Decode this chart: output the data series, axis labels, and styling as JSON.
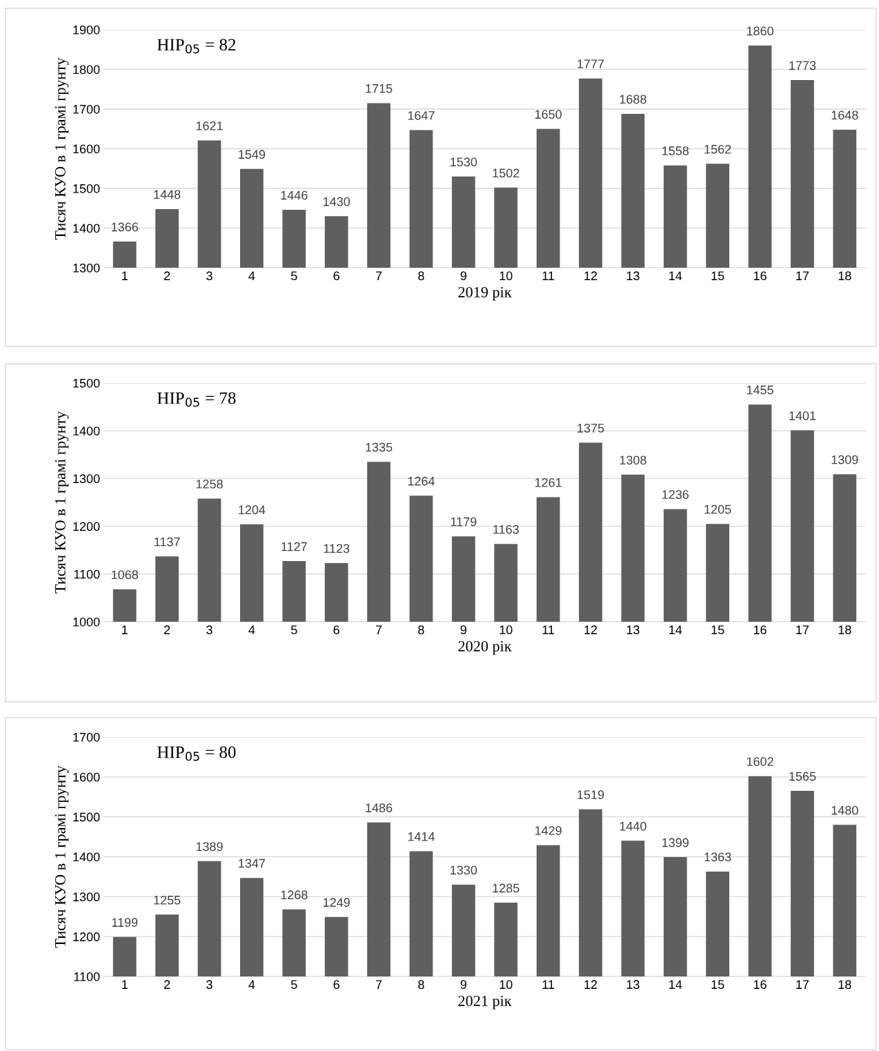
{
  "chart_data": [
    {
      "type": "bar",
      "categories": [
        "1",
        "2",
        "3",
        "4",
        "5",
        "6",
        "7",
        "8",
        "9",
        "10",
        "11",
        "12",
        "13",
        "14",
        "15",
        "16",
        "17",
        "18"
      ],
      "values": [
        1366,
        1448,
        1621,
        1549,
        1446,
        1430,
        1715,
        1647,
        1530,
        1502,
        1650,
        1777,
        1688,
        1558,
        1562,
        1860,
        1773,
        1648
      ],
      "color": "#5f5f5f",
      "ylim": [
        1300,
        1900
      ],
      "yticks": [
        1300,
        1400,
        1500,
        1600,
        1700,
        1800,
        1900
      ],
      "grid": "y",
      "data_labels": true,
      "xlabel": "2019 рік",
      "ylabel": "Тисяч КУО в 1 грамі грунту",
      "annotations": [
        "НІР$_{05}$ = 82"
      ]
    },
    {
      "type": "bar",
      "categories": [
        "1",
        "2",
        "3",
        "4",
        "5",
        "6",
        "7",
        "8",
        "9",
        "10",
        "11",
        "12",
        "13",
        "14",
        "15",
        "16",
        "17",
        "18"
      ],
      "values": [
        1068,
        1137,
        1258,
        1204,
        1127,
        1123,
        1335,
        1264,
        1179,
        1163,
        1261,
        1375,
        1308,
        1236,
        1205,
        1455,
        1401,
        1309
      ],
      "color": "#5f5f5f",
      "ylim": [
        1000,
        1500
      ],
      "yticks": [
        1000,
        1100,
        1200,
        1300,
        1400,
        1500
      ],
      "grid": "y",
      "data_labels": true,
      "xlabel": "2020 рік",
      "ylabel": "Тисяч КУО в 1 грамі грунту",
      "annotations": [
        "НІР$_{05}$ = 78"
      ]
    },
    {
      "type": "bar",
      "categories": [
        "1",
        "2",
        "3",
        "4",
        "5",
        "6",
        "7",
        "8",
        "9",
        "10",
        "11",
        "12",
        "13",
        "14",
        "15",
        "16",
        "17",
        "18"
      ],
      "values": [
        1199,
        1255,
        1389,
        1347,
        1268,
        1249,
        1486,
        1414,
        1330,
        1285,
        1429,
        1519,
        1440,
        1399,
        1363,
        1602,
        1565,
        1480
      ],
      "color": "#5f5f5f",
      "ylim": [
        1100,
        1700
      ],
      "yticks": [
        1100,
        1200,
        1300,
        1400,
        1500,
        1600,
        1700
      ],
      "grid": "y",
      "data_labels": true,
      "xlabel": "2021 рік",
      "ylabel": "Тисяч КУО в 1 грамі грунту",
      "annotations": [
        "НІР$_{05}$ = 80"
      ]
    }
  ]
}
